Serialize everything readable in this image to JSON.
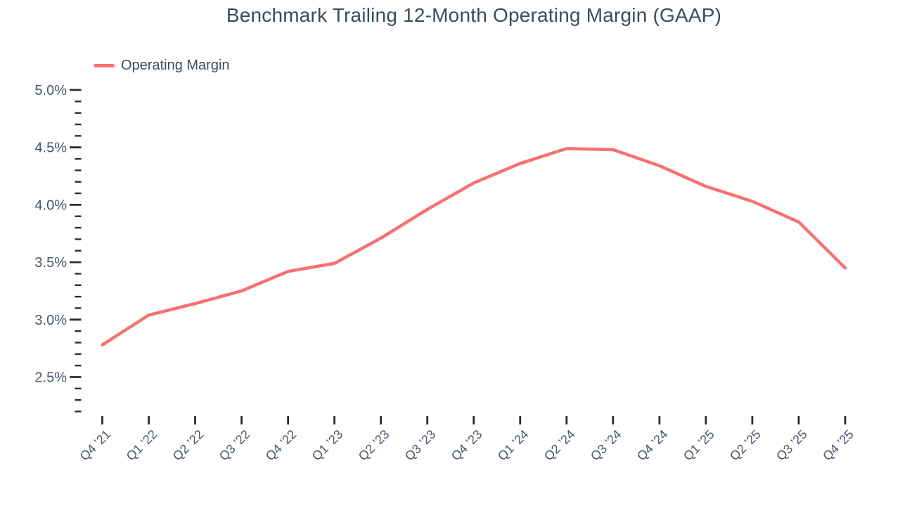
{
  "title": "Benchmark Trailing 12-Month Operating Margin (GAAP)",
  "legend": {
    "items": [
      {
        "label": "Operating Margin",
        "color": "#f87171"
      }
    ]
  },
  "chart_data": {
    "type": "line",
    "title": "Benchmark Trailing 12-Month Operating Margin (GAAP)",
    "categories": [
      "Q4 ’21",
      "Q1 ’22",
      "Q2 ’22",
      "Q3 ’22",
      "Q4 ’22",
      "Q1 ’23",
      "Q2 ’23",
      "Q3 ’23",
      "Q4 ’23",
      "Q1 ’24",
      "Q2 ’24",
      "Q3 ’24",
      "Q4 ’24",
      "Q1 ’25",
      "Q2 ’25",
      "Q3 ’25",
      "Q4 ’25"
    ],
    "series": [
      {
        "name": "Operating Margin",
        "color": "#f87171",
        "values": [
          2.78,
          3.04,
          3.14,
          3.25,
          3.42,
          3.49,
          3.71,
          3.96,
          4.19,
          4.36,
          4.49,
          4.48,
          4.34,
          4.16,
          4.03,
          3.85,
          3.45
        ]
      }
    ],
    "xlabel": "",
    "ylabel": "",
    "ylim": [
      2.2,
      5.0
    ],
    "yticks_major": [
      5.0,
      4.5,
      4.0,
      3.5,
      3.0,
      2.5
    ],
    "ytick_labels": [
      "5.0%",
      "4.5%",
      "4.0%",
      "3.5%",
      "3.0%",
      "2.5%"
    ],
    "minor_tick_step": 0.1,
    "grid": false,
    "legend_position": "top-left"
  },
  "colors": {
    "line": "#f87171",
    "title_text": "#3d4b59",
    "axis_label": "#4a5668",
    "tick_mark": "#242e3a",
    "background": "#ffffff"
  }
}
